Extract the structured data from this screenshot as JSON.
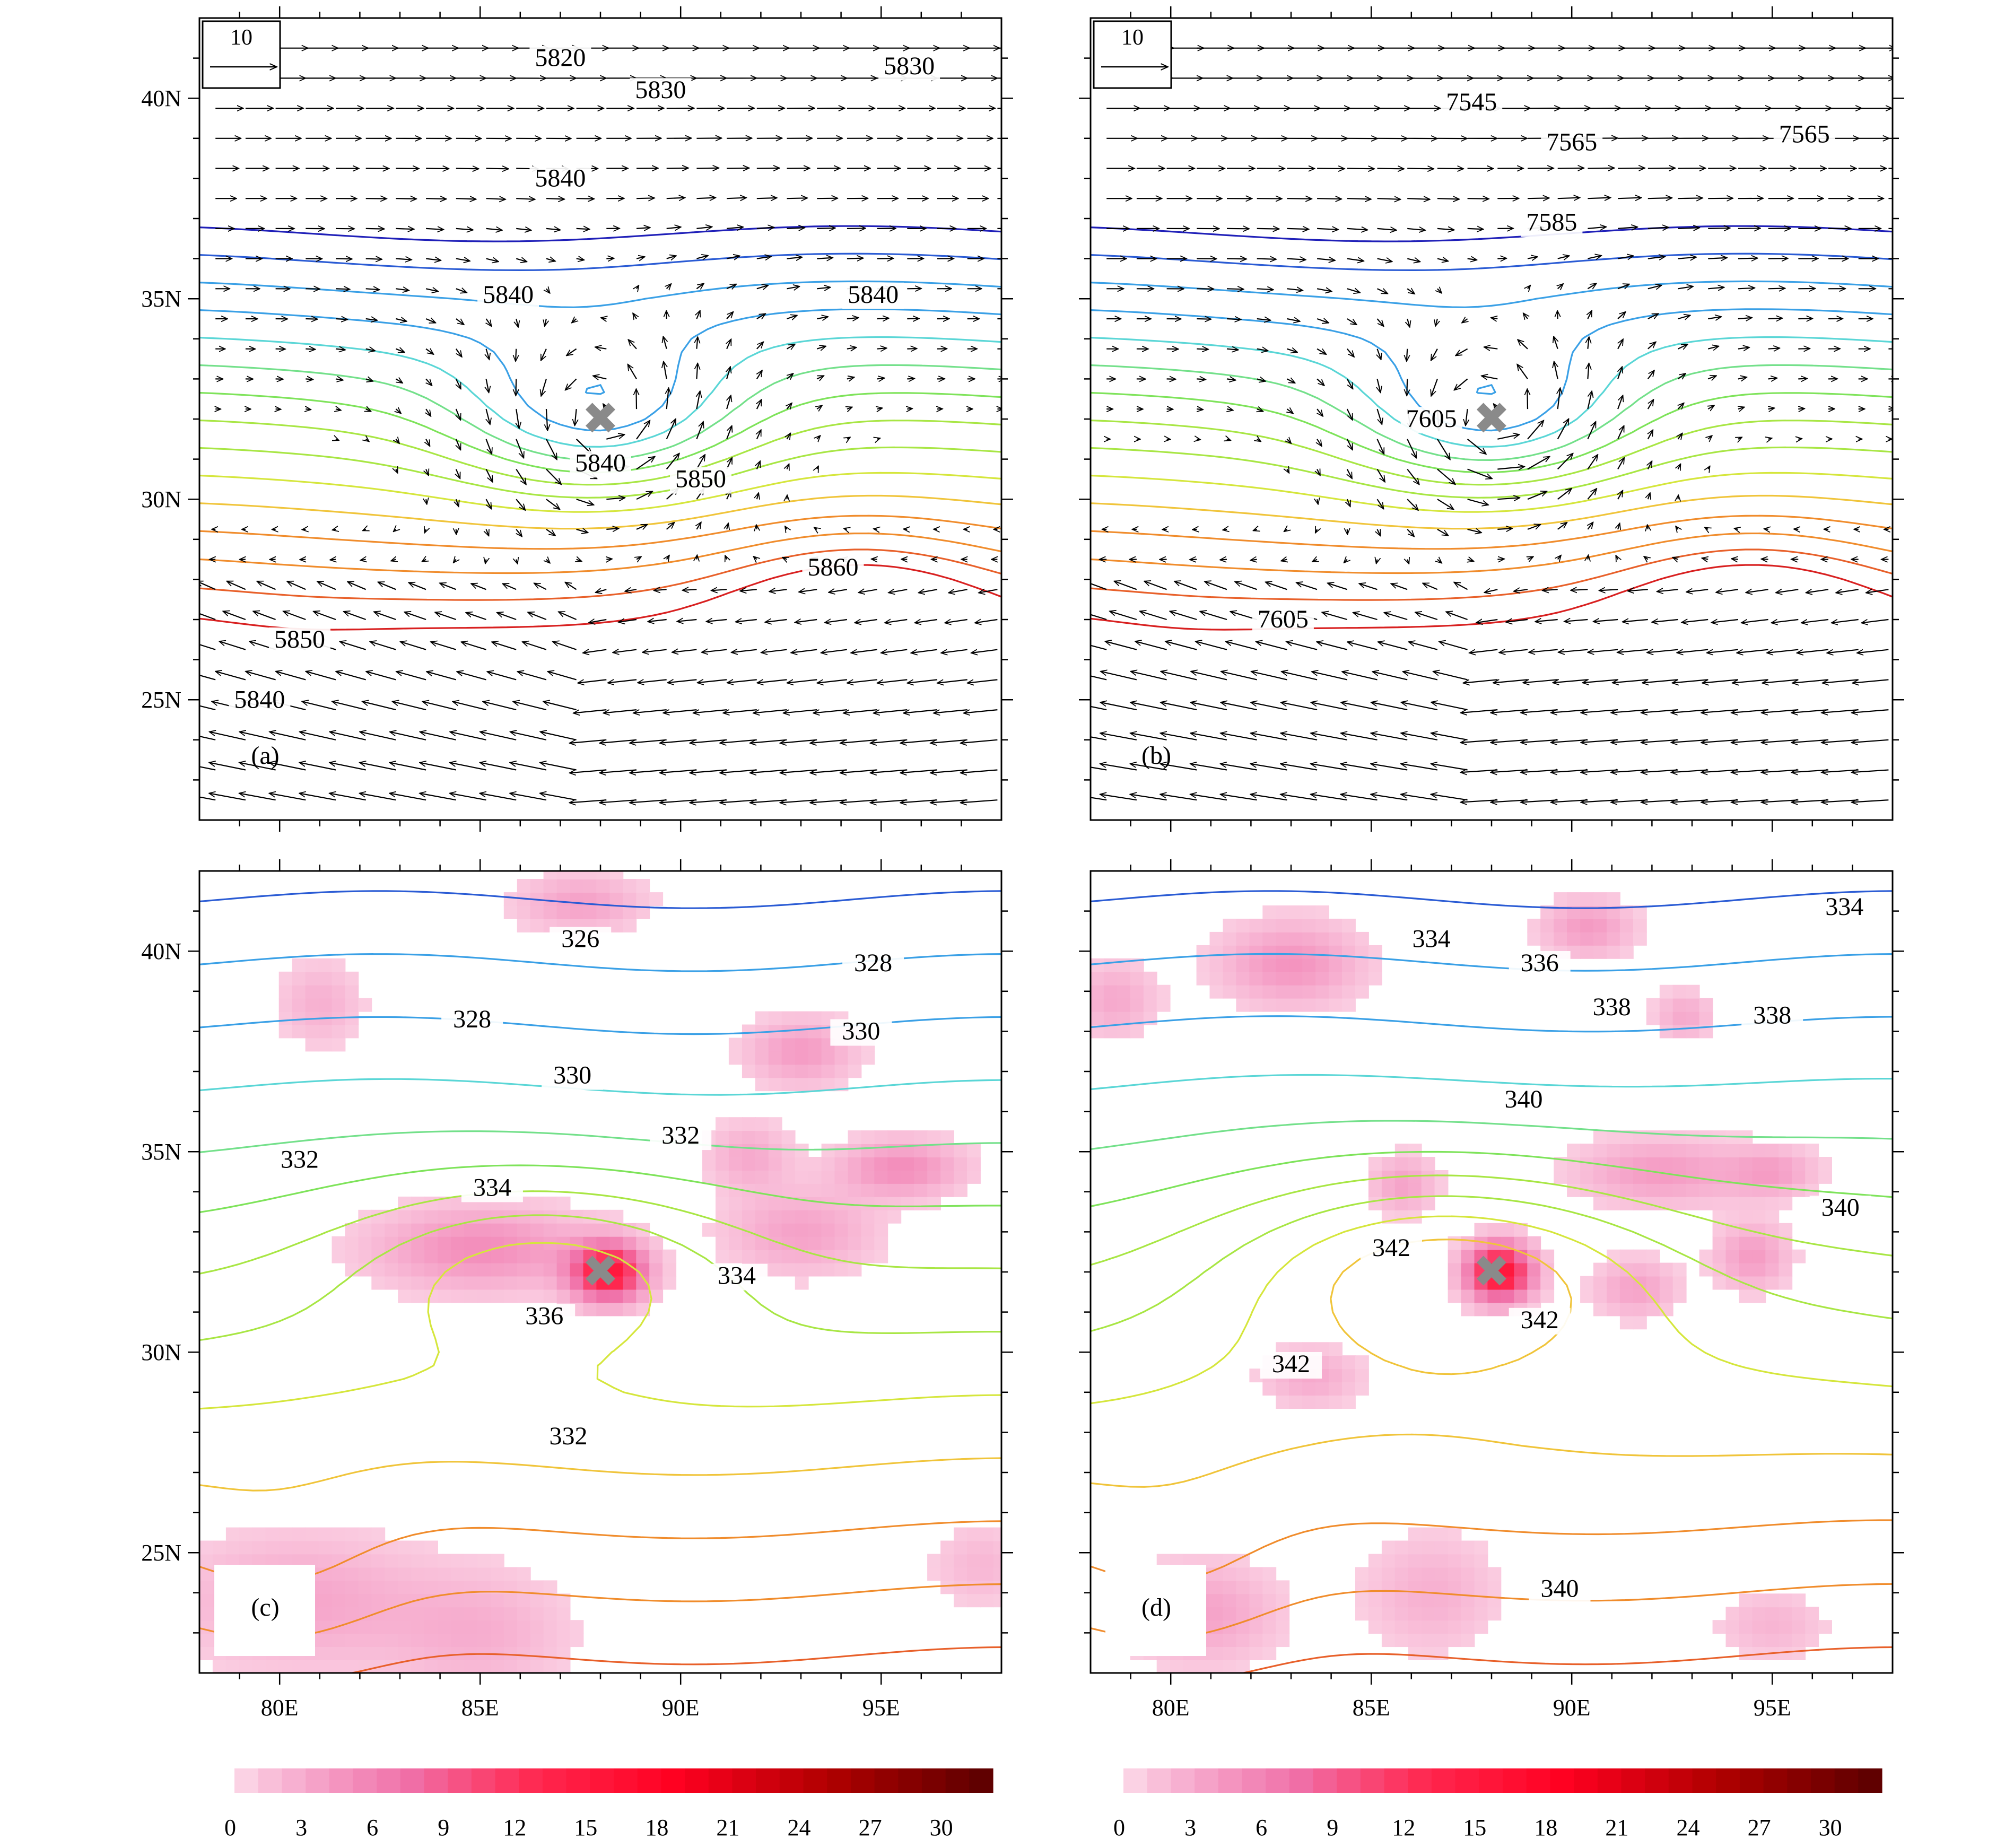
{
  "colors": {
    "frame": "#000000",
    "vector": "#000000",
    "marker": "#8a8a8a",
    "shade_low": "#fde0ec",
    "shade_mid": "#f070a8",
    "shade_high": "#ff0020",
    "shade_top": "#5a0000"
  },
  "axes": {
    "lon_ticks": [
      "80E",
      "85E",
      "90E",
      "95E"
    ],
    "lon_values": [
      80,
      85,
      90,
      95
    ],
    "lat_ticks": [
      "40N",
      "35N",
      "30N",
      "25N"
    ],
    "lat_values": [
      40,
      35,
      30,
      25
    ],
    "lon_range": [
      78,
      98
    ],
    "lat_range": [
      22,
      42
    ]
  },
  "marker": {
    "symbol": "✖",
    "lon": 88,
    "lat": 32
  },
  "panels": [
    {
      "id": "a",
      "label": "(a)",
      "reference_vector": "10",
      "has_shading": false,
      "contour_labels": [
        {
          "text": "5820",
          "lon": 87.0,
          "lat": 40.8
        },
        {
          "text": "5830",
          "lon": 89.5,
          "lat": 40.0
        },
        {
          "text": "5830",
          "lon": 95.7,
          "lat": 40.6
        },
        {
          "text": "5840",
          "lon": 87.0,
          "lat": 37.8
        },
        {
          "text": "5840",
          "lon": 85.7,
          "lat": 34.9
        },
        {
          "text": "5840",
          "lon": 94.8,
          "lat": 34.9
        },
        {
          "text": "5840",
          "lon": 88.0,
          "lat": 30.7
        },
        {
          "text": "5850",
          "lon": 90.5,
          "lat": 30.3
        },
        {
          "text": "5860",
          "lon": 93.8,
          "lat": 28.1
        },
        {
          "text": "5850",
          "lon": 80.5,
          "lat": 26.3
        },
        {
          "text": "5840",
          "lon": 79.5,
          "lat": 24.8
        }
      ]
    },
    {
      "id": "b",
      "label": "(b)",
      "reference_vector": "10",
      "has_shading": false,
      "contour_labels": [
        {
          "text": "7545",
          "lon": 87.5,
          "lat": 39.7
        },
        {
          "text": "7565",
          "lon": 90.0,
          "lat": 38.7
        },
        {
          "text": "7565",
          "lon": 95.8,
          "lat": 38.9
        },
        {
          "text": "7585",
          "lon": 89.5,
          "lat": 36.7
        },
        {
          "text": "7605",
          "lon": 86.5,
          "lat": 31.8
        },
        {
          "text": "7605",
          "lon": 82.8,
          "lat": 26.8
        }
      ]
    },
    {
      "id": "c",
      "label": "(c)",
      "reference_vector": "",
      "has_shading": true,
      "contour_labels": [
        {
          "text": "326",
          "lon": 87.5,
          "lat": 40.1
        },
        {
          "text": "328",
          "lon": 94.8,
          "lat": 39.5
        },
        {
          "text": "328",
          "lon": 84.8,
          "lat": 38.1
        },
        {
          "text": "330",
          "lon": 94.5,
          "lat": 37.8
        },
        {
          "text": "330",
          "lon": 87.3,
          "lat": 36.7
        },
        {
          "text": "332",
          "lon": 90.0,
          "lat": 35.2
        },
        {
          "text": "332",
          "lon": 80.5,
          "lat": 34.6
        },
        {
          "text": "334",
          "lon": 85.3,
          "lat": 33.9
        },
        {
          "text": "334",
          "lon": 91.4,
          "lat": 31.7
        },
        {
          "text": "336",
          "lon": 86.6,
          "lat": 30.7
        },
        {
          "text": "332",
          "lon": 87.2,
          "lat": 27.7
        }
      ]
    },
    {
      "id": "d",
      "label": "(d)",
      "reference_vector": "",
      "has_shading": true,
      "contour_labels": [
        {
          "text": "334",
          "lon": 96.8,
          "lat": 40.9
        },
        {
          "text": "334",
          "lon": 86.5,
          "lat": 40.1
        },
        {
          "text": "336",
          "lon": 89.2,
          "lat": 39.5
        },
        {
          "text": "338",
          "lon": 91.0,
          "lat": 38.4
        },
        {
          "text": "338",
          "lon": 95.0,
          "lat": 38.2
        },
        {
          "text": "340",
          "lon": 88.8,
          "lat": 36.1
        },
        {
          "text": "340",
          "lon": 96.7,
          "lat": 33.4
        },
        {
          "text": "342",
          "lon": 85.5,
          "lat": 32.4
        },
        {
          "text": "342",
          "lon": 89.2,
          "lat": 30.6
        },
        {
          "text": "342",
          "lon": 83.0,
          "lat": 29.5
        },
        {
          "text": "340",
          "lon": 89.7,
          "lat": 23.9
        }
      ]
    }
  ],
  "colorbar": {
    "ticks": [
      "0",
      "3",
      "6",
      "9",
      "12",
      "15",
      "18",
      "21",
      "24",
      "27",
      "30"
    ],
    "values": [
      0,
      3,
      6,
      9,
      12,
      15,
      18,
      21,
      24,
      27,
      30
    ],
    "max": 32
  }
}
